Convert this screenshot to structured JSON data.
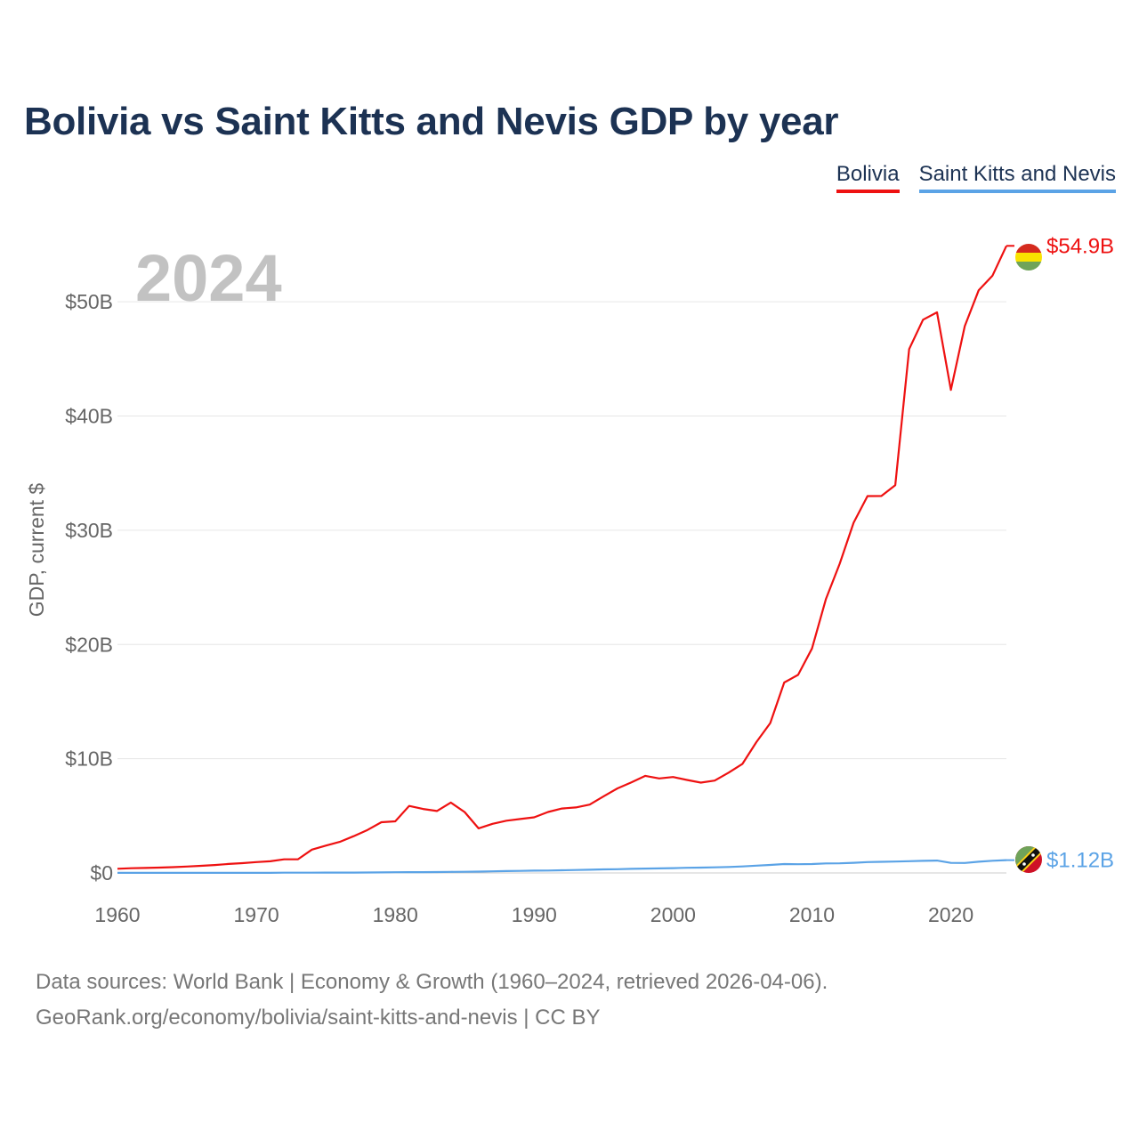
{
  "title": "Bolivia vs Saint Kitts and Nevis GDP by year",
  "legend": {
    "items": [
      {
        "label": "Bolivia",
        "color": "#ee1111"
      },
      {
        "label": "Saint Kitts and Nevis",
        "color": "#5ba3e6"
      }
    ]
  },
  "year_label": "2024",
  "source": {
    "line1": "Data sources: World Bank | Economy & Growth (1960–2024, retrieved 2026-04-06).",
    "line2": "GeoRank.org/economy/bolivia/saint-kitts-and-nevis | CC BY"
  },
  "chart_data": {
    "type": "line",
    "title": "Bolivia vs Saint Kitts and Nevis GDP by year",
    "xlabel": "",
    "ylabel": "GDP, current $",
    "xlim": [
      1960,
      2024
    ],
    "ylim": [
      0,
      55
    ],
    "y_unit": "billion USD",
    "x_ticks": [
      1960,
      1970,
      1980,
      1990,
      2000,
      2010,
      2020
    ],
    "y_ticks": [
      0,
      10,
      20,
      30,
      40,
      50
    ],
    "y_tick_labels": [
      "$0",
      "$10B",
      "$20B",
      "$30B",
      "$40B",
      "$50B"
    ],
    "grid": true,
    "legend_position": "top-right",
    "x": [
      1960,
      1961,
      1962,
      1963,
      1964,
      1965,
      1966,
      1967,
      1968,
      1969,
      1970,
      1971,
      1972,
      1973,
      1974,
      1975,
      1976,
      1977,
      1978,
      1979,
      1980,
      1981,
      1982,
      1983,
      1984,
      1985,
      1986,
      1987,
      1988,
      1989,
      1990,
      1991,
      1992,
      1993,
      1994,
      1995,
      1996,
      1997,
      1998,
      1999,
      2000,
      2001,
      2002,
      2003,
      2004,
      2005,
      2006,
      2007,
      2008,
      2009,
      2010,
      2011,
      2012,
      2013,
      2014,
      2015,
      2016,
      2017,
      2018,
      2019,
      2020,
      2021,
      2022,
      2023,
      2024
    ],
    "series": [
      {
        "name": "Bolivia",
        "color": "#ee1111",
        "end_label": "$54.9B",
        "flag": "bolivia-flag",
        "values": [
          0.37,
          0.41,
          0.44,
          0.47,
          0.51,
          0.56,
          0.62,
          0.69,
          0.79,
          0.86,
          0.95,
          1.02,
          1.19,
          1.2,
          2.04,
          2.39,
          2.72,
          3.22,
          3.76,
          4.44,
          4.52,
          5.87,
          5.6,
          5.42,
          6.16,
          5.33,
          3.9,
          4.3,
          4.57,
          4.72,
          4.87,
          5.34,
          5.64,
          5.73,
          5.98,
          6.71,
          7.4,
          7.93,
          8.5,
          8.27,
          8.4,
          8.14,
          7.91,
          8.09,
          8.78,
          9.55,
          11.45,
          13.12,
          16.67,
          17.34,
          19.65,
          23.96,
          27.08,
          30.66,
          32.99,
          33.0,
          33.94,
          45.86,
          48.43,
          49.08,
          42.29,
          47.87,
          51.0,
          52.3,
          54.9
        ]
      },
      {
        "name": "Saint Kitts and Nevis",
        "color": "#5ba3e6",
        "end_label": "$1.12B",
        "flag": "saint-kitts-and-nevis-flag",
        "values": [
          0.01,
          0.01,
          0.01,
          0.01,
          0.01,
          0.01,
          0.01,
          0.01,
          0.01,
          0.01,
          0.01,
          0.01,
          0.02,
          0.02,
          0.02,
          0.03,
          0.03,
          0.03,
          0.04,
          0.05,
          0.06,
          0.07,
          0.07,
          0.08,
          0.09,
          0.1,
          0.12,
          0.14,
          0.16,
          0.18,
          0.2,
          0.21,
          0.23,
          0.26,
          0.28,
          0.31,
          0.33,
          0.36,
          0.38,
          0.4,
          0.42,
          0.45,
          0.47,
          0.49,
          0.52,
          0.57,
          0.64,
          0.7,
          0.78,
          0.76,
          0.78,
          0.83,
          0.84,
          0.89,
          0.95,
          0.97,
          1.0,
          1.03,
          1.06,
          1.08,
          0.88,
          0.87,
          0.98,
          1.07,
          1.12
        ]
      }
    ]
  }
}
